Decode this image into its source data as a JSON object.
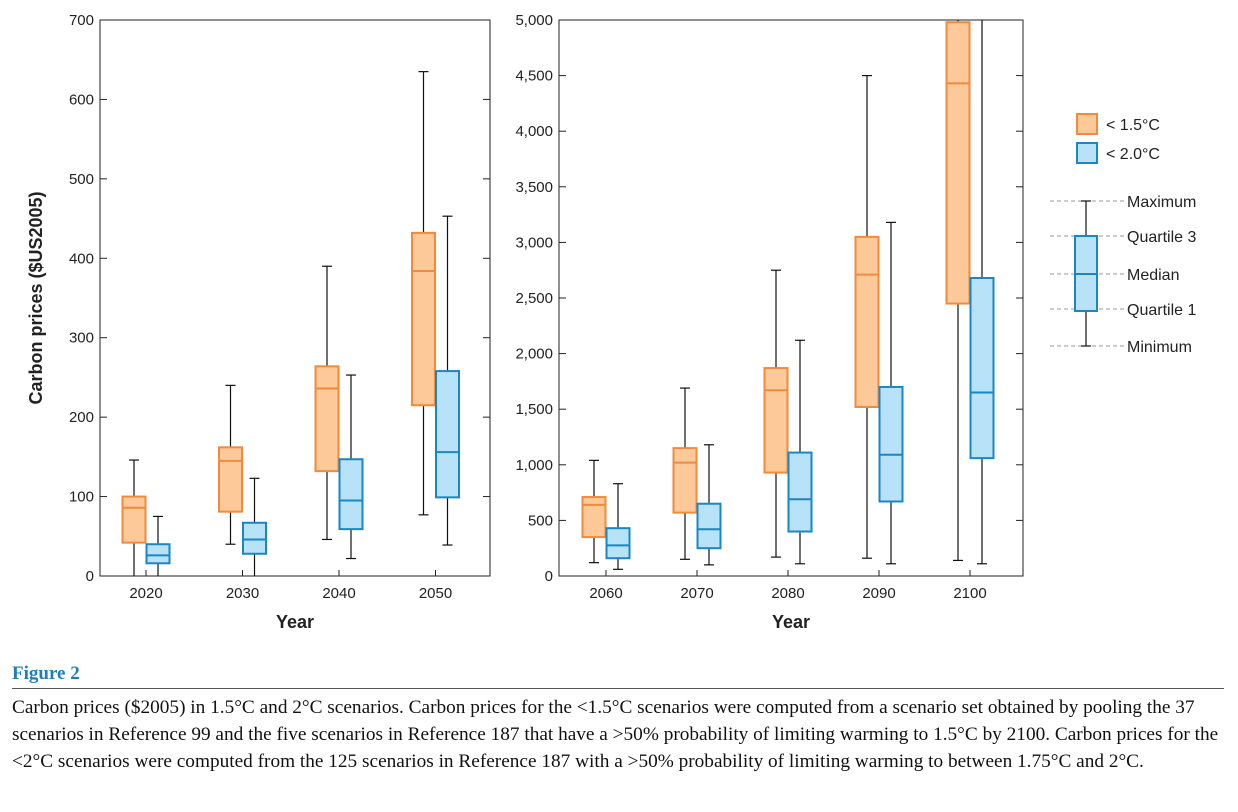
{
  "chart_data": [
    {
      "type": "box",
      "xlabel": "Year",
      "ylabel": "Carbon prices ($US2005)",
      "ylim": [
        0,
        700
      ],
      "yticks": [
        0,
        100,
        200,
        300,
        400,
        500,
        600,
        700
      ],
      "ytick_labels": [
        "0",
        "100",
        "200",
        "300",
        "400",
        "500",
        "600",
        "700"
      ],
      "categories": [
        "2020",
        "2030",
        "2040",
        "2050"
      ],
      "series": [
        {
          "name": "< 1.5°C",
          "color": "#f08a3c",
          "fill": "#fdc998",
          "boxes": [
            {
              "min": 0,
              "q1": 42,
              "median": 86,
              "q3": 100,
              "max": 146
            },
            {
              "min": 40,
              "q1": 81,
              "median": 145,
              "q3": 162,
              "max": 240
            },
            {
              "min": 46,
              "q1": 132,
              "median": 236,
              "q3": 264,
              "max": 390
            },
            {
              "min": 77,
              "q1": 215,
              "median": 384,
              "q3": 432,
              "max": 635
            }
          ]
        },
        {
          "name": "< 2.0°C",
          "color": "#1a86c4",
          "fill": "#b7e2f7",
          "boxes": [
            {
              "min": 0,
              "q1": 16,
              "median": 26,
              "q3": 40,
              "max": 75
            },
            {
              "min": 0,
              "q1": 28,
              "median": 46,
              "q3": 67,
              "max": 123
            },
            {
              "min": 22,
              "q1": 59,
              "median": 95,
              "q3": 147,
              "max": 253
            },
            {
              "min": 39,
              "q1": 99,
              "median": 156,
              "q3": 258,
              "max": 453
            }
          ]
        }
      ]
    },
    {
      "type": "box",
      "xlabel": "Year",
      "ylabel": "",
      "ylim": [
        0,
        5000
      ],
      "yticks": [
        0,
        500,
        1000,
        1500,
        2000,
        2500,
        3000,
        3500,
        4000,
        4500,
        5000
      ],
      "ytick_labels": [
        "0",
        "500",
        "1,000",
        "1,500",
        "2,000",
        "2,500",
        "3,000",
        "3,500",
        "4,000",
        "4,500",
        "5,000"
      ],
      "categories": [
        "2060",
        "2070",
        "2080",
        "2090",
        "2100"
      ],
      "series": [
        {
          "name": "< 1.5°C",
          "color": "#f08a3c",
          "fill": "#fdc998",
          "boxes": [
            {
              "min": 120,
              "q1": 350,
              "median": 640,
              "q3": 710,
              "max": 1040
            },
            {
              "min": 150,
              "q1": 570,
              "median": 1020,
              "q3": 1150,
              "max": 1690
            },
            {
              "min": 170,
              "q1": 930,
              "median": 1670,
              "q3": 1870,
              "max": 2750
            },
            {
              "min": 160,
              "q1": 1520,
              "median": 2710,
              "q3": 3050,
              "max": 4500
            },
            {
              "min": 140,
              "q1": 2450,
              "median": 4430,
              "q3": 4980,
              "max": 5000
            }
          ]
        },
        {
          "name": "< 2.0°C",
          "color": "#1a86c4",
          "fill": "#b7e2f7",
          "boxes": [
            {
              "min": 60,
              "q1": 160,
              "median": 275,
              "q3": 430,
              "max": 830
            },
            {
              "min": 100,
              "q1": 250,
              "median": 420,
              "q3": 650,
              "max": 1180
            },
            {
              "min": 110,
              "q1": 400,
              "median": 690,
              "q3": 1110,
              "max": 2120
            },
            {
              "min": 110,
              "q1": 670,
              "median": 1090,
              "q3": 1700,
              "max": 3180
            },
            {
              "min": 110,
              "q1": 1060,
              "median": 1650,
              "q3": 2680,
              "max": 5000
            }
          ]
        }
      ]
    }
  ],
  "legend": {
    "series": [
      {
        "label": "< 1.5°C",
        "color": "#f08a3c",
        "fill": "#fdc998"
      },
      {
        "label": "< 2.0°C",
        "color": "#1a86c4",
        "fill": "#b7e2f7"
      }
    ],
    "key_labels": [
      "Maximum",
      "Quartile 3",
      "Median",
      "Quartile 1",
      "Minimum"
    ]
  },
  "figure": {
    "title": "Figure 2",
    "caption": "Carbon prices ($2005) in 1.5°C and 2°C scenarios. Carbon prices for the <1.5°C scenarios were computed from a scenario set obtained by pooling the 37 scenarios in Reference 99 and the five scenarios in Reference 187 that have a >50% probability of limiting warming to 1.5°C by 2100. Carbon prices for the <2°C scenarios were computed from the 125 scenarios in Reference 187 with a >50% probability of limiting warming to between 1.75°C and 2°C."
  }
}
